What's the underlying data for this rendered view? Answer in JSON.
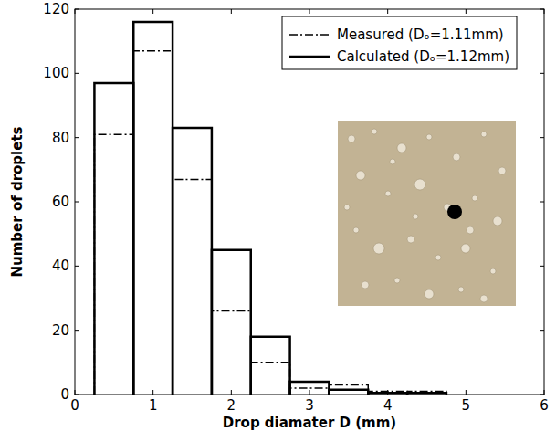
{
  "chart_data": {
    "type": "histogram",
    "x_label": "Drop diamater D (mm)",
    "y_label": "Number of droplets",
    "bins": [
      0.25,
      0.75,
      1.25,
      1.75,
      2.25,
      2.75,
      3.25,
      3.75,
      4.25,
      4.75
    ],
    "series": [
      {
        "name": "Measured  (Dₒ=1.11mm)",
        "color": "#000000",
        "line_style": "dashdot",
        "values": [
          81,
          107,
          67,
          26,
          10,
          2,
          3,
          1,
          1
        ]
      },
      {
        "name": "Calculated  (Dₒ=1.12mm)",
        "color": "#000000",
        "line_style": "solid",
        "values": [
          97,
          116,
          83,
          45,
          18,
          4,
          1.5,
          0.5,
          0.5
        ]
      }
    ],
    "xlim": [
      0,
      6
    ],
    "xticks": [
      0,
      1,
      2,
      3,
      4,
      5,
      6
    ],
    "ylim": [
      0,
      120
    ],
    "yticks": [
      0,
      20,
      40,
      60,
      80,
      100,
      120
    ],
    "grid": false,
    "legend": "upper right"
  }
}
